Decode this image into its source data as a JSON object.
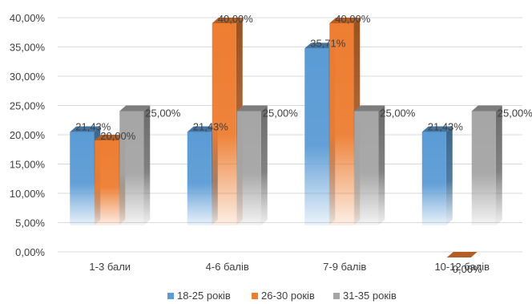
{
  "chart_data": {
    "type": "bar",
    "style": "3d-clustered-column",
    "title": "",
    "xlabel": "",
    "ylabel": "",
    "ylim": [
      0,
      40
    ],
    "y_tick_step": 5,
    "y_tick_labels": [
      "0,00%",
      "5,00%",
      "10,00%",
      "15,00%",
      "20,00%",
      "25,00%",
      "30,00%",
      "35,00%",
      "40,00%"
    ],
    "grid": true,
    "legend_position": "bottom",
    "categories": [
      "1-3 бали",
      "4-6 балів",
      "7-9 балів",
      "10-12 балів"
    ],
    "series": [
      {
        "name": "18-25 років",
        "color": "#5b9bd5",
        "values": [
          21.43,
          21.43,
          35.71,
          21.43
        ],
        "labels": [
          "21,43%",
          "21,43%",
          "35,71%",
          "21,43%"
        ]
      },
      {
        "name": "26-30 років",
        "color": "#ed7d31",
        "values": [
          20.0,
          40.0,
          40.0,
          0.0
        ],
        "labels": [
          "20,00%",
          "40,00%",
          "40,00%",
          "0,00%"
        ]
      },
      {
        "name": "31-35 років",
        "color": "#a5a5a5",
        "values": [
          25.0,
          25.0,
          25.0,
          25.0
        ],
        "labels": [
          "25,00%",
          "25,00%",
          "25,00%",
          "25,00%"
        ]
      }
    ]
  }
}
